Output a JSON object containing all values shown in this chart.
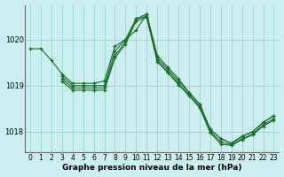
{
  "title": "Graphe pression niveau de la mer (hPa)",
  "background_color": "#cceef0",
  "grid_color": "#99ddcc",
  "line_color": "#1a6b2a",
  "xlim": [
    -0.5,
    23.5
  ],
  "ylim": [
    1017.55,
    1020.75
  ],
  "yticks": [
    1018,
    1019,
    1020
  ],
  "xticks": [
    0,
    1,
    2,
    3,
    4,
    5,
    6,
    7,
    8,
    9,
    10,
    11,
    12,
    13,
    14,
    15,
    16,
    17,
    18,
    19,
    20,
    21,
    22,
    23
  ],
  "series": [
    {
      "x": [
        0,
        1,
        2,
        3,
        4,
        5,
        6,
        7,
        8,
        9,
        10,
        11,
        12,
        13,
        14,
        15,
        16,
        17,
        18,
        19,
        20,
        21,
        22,
        23
      ],
      "y": [
        1019.8,
        1019.8,
        1019.55,
        1019.25,
        1019.05,
        1019.05,
        1019.05,
        1019.1,
        1019.85,
        1020.0,
        1020.2,
        1020.55,
        1019.65,
        1019.4,
        1019.15,
        1018.85,
        1018.6,
        1018.05,
        1017.85,
        1017.75,
        1017.9,
        1018.0,
        1018.2,
        1018.35
      ]
    },
    {
      "x": [
        3,
        4,
        5,
        6,
        7,
        8,
        9,
        10,
        11,
        12,
        13,
        14,
        15,
        16,
        17,
        18,
        19,
        20,
        21,
        22,
        23
      ],
      "y": [
        1019.2,
        1019.0,
        1019.0,
        1019.0,
        1019.0,
        1019.75,
        1020.0,
        1020.45,
        1020.55,
        1019.6,
        1019.35,
        1019.1,
        1018.85,
        1018.6,
        1018.05,
        1017.85,
        1017.75,
        1017.9,
        1018.0,
        1018.2,
        1018.35
      ]
    },
    {
      "x": [
        3,
        4,
        5,
        6,
        7,
        8,
        9,
        10,
        11,
        12,
        13,
        14,
        15,
        16,
        17,
        18,
        19,
        20,
        21,
        22,
        23
      ],
      "y": [
        1019.15,
        1018.95,
        1018.95,
        1018.95,
        1018.95,
        1019.65,
        1019.95,
        1020.45,
        1020.5,
        1019.55,
        1019.3,
        1019.05,
        1018.8,
        1018.55,
        1018.0,
        1017.78,
        1017.72,
        1017.85,
        1017.95,
        1018.15,
        1018.28
      ]
    },
    {
      "x": [
        3,
        4,
        5,
        6,
        7,
        8,
        9,
        10,
        11,
        12,
        13,
        14,
        15,
        16,
        17,
        18,
        19,
        20,
        21,
        22,
        23
      ],
      "y": [
        1019.1,
        1018.9,
        1018.9,
        1018.9,
        1018.9,
        1019.6,
        1019.9,
        1020.4,
        1020.48,
        1019.52,
        1019.28,
        1019.02,
        1018.78,
        1018.52,
        1017.98,
        1017.73,
        1017.7,
        1017.83,
        1017.93,
        1018.12,
        1018.25
      ]
    }
  ],
  "xlabel_fontsize": 6.5,
  "ylabel_fontsize": 6.5,
  "tick_fontsize": 6.0,
  "tick_fontsize_x": 5.5
}
